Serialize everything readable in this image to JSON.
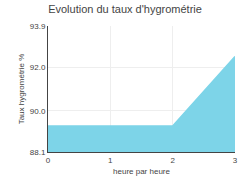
{
  "chart_data": {
    "type": "area",
    "title": "Evolution du taux d'hygrométrie",
    "x_label": "heure par heure",
    "y_label": "Taux hygrométrie %",
    "x": [
      0,
      1,
      2,
      3
    ],
    "values": [
      89.3,
      89.3,
      89.3,
      92.5
    ],
    "color": "#7dd4e8",
    "xlim": [
      0,
      3
    ],
    "ylim": [
      88.1,
      93.9
    ],
    "xticks": [
      0,
      1,
      2,
      3
    ],
    "yticks": [
      88.1,
      {
        "value": 90.0,
        "label": "90.0"
      },
      {
        "value": 92.0,
        "label": "92.0"
      },
      93.9
    ],
    "grid": true
  }
}
